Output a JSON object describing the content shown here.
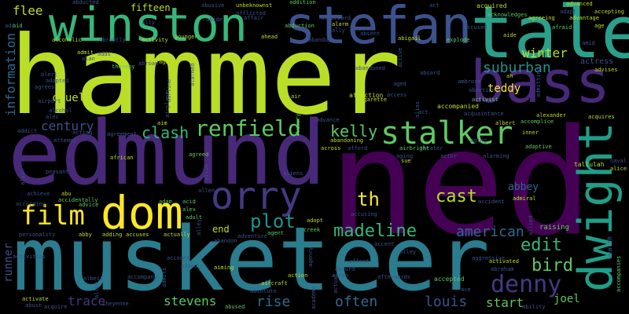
{
  "palette": {
    "lime": "#bade28",
    "yellow": "#fde725",
    "green": "#5ec962",
    "teal": "#21918c",
    "teal_light": "#2a9f8a",
    "blue": "#31688e",
    "blue_dark": "#3b528b",
    "indigo": "#443983",
    "purple": "#482878",
    "purple_dark": "#440154",
    "mint": "#35b779",
    "cyan": "#1f9e89"
  },
  "words": {
    "hammer": "hammer",
    "ned": "ned",
    "musketeer": "musketeer",
    "edmund": "edmund",
    "tale": "tale",
    "stefan": "stefan",
    "winston": "winston",
    "bass": "bass",
    "dwight": "dwight",
    "dom": "dom",
    "orry": "orry",
    "stalker": "stalker",
    "renfield": "renfield",
    "film": "film",
    "denny": "denny",
    "madeline": "madeline",
    "plot": "plot",
    "kelly": "kelly",
    "clash": "clash",
    "century": "century",
    "cast": "cast",
    "th": "th",
    "american": "american",
    "edit": "edit",
    "bird": "bird",
    "suburban": "suburban",
    "winter": "winter",
    "teddy": "teddy",
    "information": "information",
    "runner": "runner",
    "cruel": "cruel",
    "flee": "flee",
    "fifteen": "fifteen",
    "stevens": "stevens",
    "trace": "trace",
    "rise": "rise",
    "often": "often",
    "louis": "louis",
    "start": "start",
    "joel": "joel",
    "abbey": "abbey",
    "end": "end",
    "actress": "actress",
    "wealth": "wealth",
    "tallulah": "tallulah",
    "accepted": "accepted",
    "accompanied": "accompanied",
    "abortion": "abortion",
    "ambrose": "ambrose",
    "affection": "affection",
    "cigarette": "cigarette",
    "abandoned": "abandoned",
    "acquired": "acquired",
    "advanced": "advanced",
    "abusive": "abusive",
    "unbeknownst": "unbeknownst",
    "addition": "addition",
    "abducted": "abducted",
    "alarm": "alarm",
    "abigail": "abigail",
    "explode": "explode",
    "alcoholic": "alcoholic",
    "activity": "activity",
    "younger": "younger",
    "ahead": "ahead",
    "abduction": "abduction",
    "abruptly": "abruptly",
    "thereby": "thereby",
    "agrees": "agrees",
    "adopted": "adopted",
    "alcohol": "alcohol",
    "airport": "airport",
    "addict": "addict",
    "attempt": "attempt",
    "acting": "acting",
    "aim": "aim",
    "agreed": "agreed",
    "african": "african",
    "peasant": "peasant",
    "achieve": "achieve",
    "according": "according",
    "personality": "personality",
    "activate": "activate",
    "abuse": "abuse",
    "acquire": "acquire",
    "advice": "advice",
    "adding": "adding",
    "accuses": "accuses",
    "actually": "actually",
    "account": "account",
    "accompany": "accompany",
    "aided": "aided",
    "aiming": "aiming",
    "cheyenne": "cheyenne",
    "abused": "abused",
    "aircraft": "aircraft",
    "action": "action",
    "afterwards": "afterwards",
    "agent": "agent",
    "creek": "creek",
    "adventure": "adventure",
    "abandon": "abandon",
    "adopt": "adopt",
    "accusing": "accusing",
    "affect": "affect",
    "activated": "activated",
    "abraham": "abraham",
    "aggressive": "aggressive",
    "raising": "raising",
    "admiral": "admiral",
    "accident": "accident",
    "adaptive": "adaptive",
    "alexander": "alexander",
    "inner": "inner",
    "albert": "albert",
    "accomplice": "accomplice",
    "acquaintance": "acquaintance",
    "activist": "activist",
    "afraid": "afraid",
    "age": "age",
    "advantage": "advantage",
    "accepting": "accepting",
    "advises": "advises",
    "acquires": "acquires",
    "alice": "alice",
    "naval": "naval",
    "accompanies": "accompanies",
    "ability": "ability",
    "aging": "aging",
    "theater": "theater",
    "across": "across",
    "afford": "afford",
    "abu": "abu",
    "accidentally": "accidentally",
    "adam": "adam",
    "acid": "acid",
    "alex": "alex",
    "adult": "adult",
    "abby": "abby",
    "aid": "aid",
    "add": "add",
    "alan": "alan",
    "admit": "admit",
    "alert": "alert",
    "ago": "ago",
    "aide": "aide",
    "ah": "ah",
    "act": "act",
    "afterward": "afterward",
    "agreeing": "agreeing",
    "acknowledges": "acknowledges",
    "ally": "ally",
    "advance": "advance",
    "air": "air",
    "luxury": "luxury",
    "abandoning": "abandoning",
    "airbright": "airbright",
    "sue": "sue",
    "access": "access",
    "aged": "aged",
    "alias": "alias",
    "active": "active",
    "agency": "agency",
    "aaron": "aaron",
    "absurd": "absurd",
    "academy": "academy",
    "actual": "actual",
    "agreement": "agreement",
    "airline": "airline",
    "alarmed": "alarmed",
    "alive": "alive",
    "activities": "activities",
    "admits": "admits",
    "allow": "allow",
    "alain": "alain",
    "admitting": "admitting",
    "allied": "allied",
    "alec": "alec",
    "alley": "alley",
    "amid": "amid",
    "adapt": "adapt",
    "adds": "adds",
    "absent": "absent",
    "affair": "affair",
    "accent": "accent",
    "actor": "actor",
    "afflicted": "afflicted",
    "abide": "abide",
    "abroad": "abroad",
    "airplane": "airplane",
    "alarming": "alarming",
    "absolute": "absolute",
    "ace": "ace",
    "aging2": "aging",
    "act2": "act",
    "ally2": "ally",
    "albeit": "albeit",
    "allen": "allen",
    "alley2": "alley",
    "aliens": "aliens",
    "aboard": "aboard",
    "abandons": "abandons",
    "accused": "accused"
  }
}
